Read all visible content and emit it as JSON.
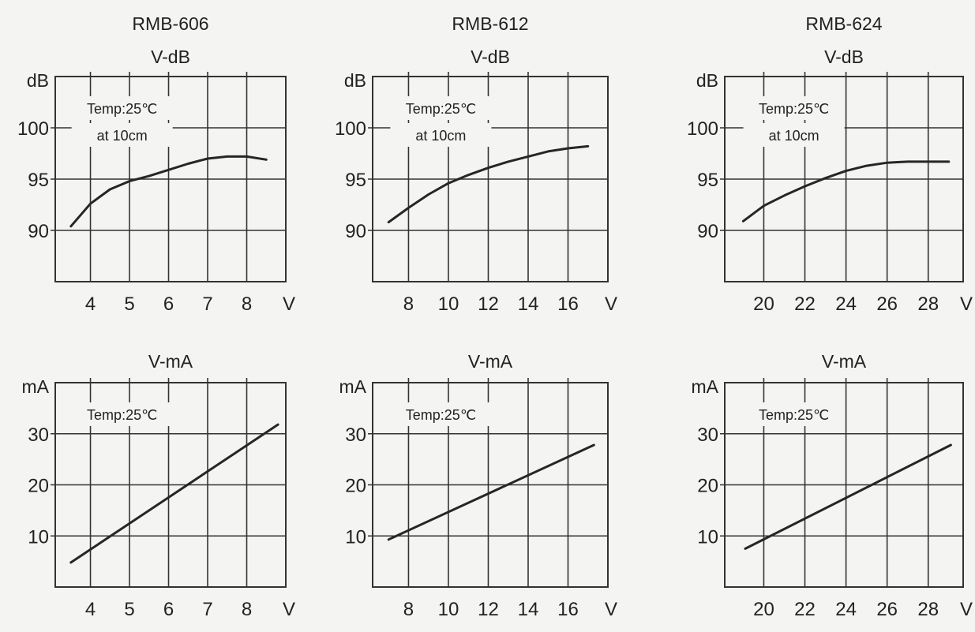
{
  "colors": {
    "background": "#f4f4f2",
    "ink": "#222222",
    "grid": "#333333",
    "curve": "#262626"
  },
  "chart_data": [
    {
      "type": "line",
      "row": 0,
      "col": 0,
      "title": "RMB-606",
      "subtitle": "V-dB",
      "ylabel": "dB",
      "xlabel": "V",
      "annotations": [
        "Temp:25℃",
        "at 10cm"
      ],
      "xlim": [
        3.1,
        9
      ],
      "ylim": [
        85,
        105
      ],
      "xticks": [
        4,
        5,
        6,
        7,
        8
      ],
      "xtick_labels": [
        "4",
        "5",
        "6",
        "7",
        "8"
      ],
      "yticks": [
        90,
        95,
        100
      ],
      "ytick_labels": [
        "90",
        "95",
        "100"
      ],
      "x_grid": [
        4,
        5,
        6,
        7,
        8
      ],
      "x": [
        3.5,
        4,
        4.5,
        5,
        5.5,
        6,
        6.5,
        7,
        7.5,
        8,
        8.5
      ],
      "values": [
        90.4,
        92.6,
        94.0,
        94.8,
        95.3,
        95.9,
        96.5,
        97.0,
        97.2,
        97.2,
        96.9
      ],
      "grid": true
    },
    {
      "type": "line",
      "row": 0,
      "col": 1,
      "title": "RMB-612",
      "subtitle": "V-dB",
      "ylabel": "dB",
      "xlabel": "V",
      "annotations": [
        "Temp:25℃",
        "at 10cm"
      ],
      "xlim": [
        6.2,
        18
      ],
      "ylim": [
        85,
        105
      ],
      "xticks": [
        8,
        10,
        12,
        14,
        16
      ],
      "xtick_labels": [
        "8",
        "10",
        "12",
        "14",
        "16"
      ],
      "yticks": [
        90,
        95,
        100
      ],
      "ytick_labels": [
        "90",
        "95",
        "100"
      ],
      "x_grid": [
        8,
        10,
        12,
        14,
        16
      ],
      "x": [
        7,
        8,
        9,
        10,
        11,
        12,
        13,
        14,
        15,
        16,
        17
      ],
      "values": [
        90.8,
        92.2,
        93.5,
        94.6,
        95.4,
        96.1,
        96.7,
        97.2,
        97.7,
        98.0,
        98.2
      ],
      "grid": true
    },
    {
      "type": "line",
      "row": 0,
      "col": 2,
      "title": "RMB-624",
      "subtitle": "V-dB",
      "ylabel": "dB",
      "xlabel": "V",
      "annotations": [
        "Temp:25℃",
        "at 10cm"
      ],
      "xlim": [
        18.1,
        29.7
      ],
      "ylim": [
        85,
        105
      ],
      "xticks": [
        20,
        22,
        24,
        26,
        28
      ],
      "xtick_labels": [
        "20",
        "22",
        "24",
        "26",
        "28"
      ],
      "yticks": [
        90,
        95,
        100
      ],
      "ytick_labels": [
        "90",
        "95",
        "100"
      ],
      "x_grid": [
        20,
        22,
        24,
        26,
        28
      ],
      "x": [
        19,
        20,
        21,
        22,
        23,
        24,
        25,
        26,
        27,
        28,
        29
      ],
      "values": [
        90.9,
        92.4,
        93.4,
        94.3,
        95.1,
        95.8,
        96.3,
        96.6,
        96.7,
        96.7,
        96.7
      ],
      "grid": true
    },
    {
      "type": "line",
      "row": 1,
      "col": 0,
      "subtitle": "V-mA",
      "ylabel": "mA",
      "xlabel": "V",
      "annotations": [
        "Temp:25℃"
      ],
      "xlim": [
        3.1,
        9
      ],
      "ylim": [
        0,
        40
      ],
      "xticks": [
        4,
        5,
        6,
        7,
        8
      ],
      "xtick_labels": [
        "4",
        "5",
        "6",
        "7",
        "8"
      ],
      "yticks": [
        10,
        20,
        30
      ],
      "ytick_labels": [
        "10",
        "20",
        "30"
      ],
      "x_grid": [
        4,
        5,
        6,
        7,
        8
      ],
      "x": [
        3.5,
        8.8
      ],
      "values": [
        4.8,
        31.8
      ],
      "grid": true
    },
    {
      "type": "line",
      "row": 1,
      "col": 1,
      "subtitle": "V-mA",
      "ylabel": "mA",
      "xlabel": "V",
      "annotations": [
        "Temp:25℃"
      ],
      "xlim": [
        6.2,
        18
      ],
      "ylim": [
        0,
        40
      ],
      "xticks": [
        8,
        10,
        12,
        14,
        16
      ],
      "xtick_labels": [
        "8",
        "10",
        "12",
        "14",
        "16"
      ],
      "yticks": [
        10,
        20,
        30
      ],
      "ytick_labels": [
        "10",
        "20",
        "30"
      ],
      "x_grid": [
        8,
        10,
        12,
        14,
        16
      ],
      "x": [
        7,
        17.3
      ],
      "values": [
        9.3,
        27.8
      ],
      "grid": true
    },
    {
      "type": "line",
      "row": 1,
      "col": 2,
      "subtitle": "V-mA",
      "ylabel": "mA",
      "xlabel": "V",
      "annotations": [
        "Temp:25℃"
      ],
      "xlim": [
        18.1,
        29.7
      ],
      "ylim": [
        0,
        40
      ],
      "xticks": [
        20,
        22,
        24,
        26,
        28
      ],
      "xtick_labels": [
        "20",
        "22",
        "24",
        "26",
        "28"
      ],
      "yticks": [
        10,
        20,
        30
      ],
      "ytick_labels": [
        "10",
        "20",
        "30"
      ],
      "x_grid": [
        20,
        22,
        24,
        26,
        28
      ],
      "x": [
        19.1,
        29.1
      ],
      "values": [
        7.5,
        27.8
      ],
      "grid": true
    }
  ]
}
